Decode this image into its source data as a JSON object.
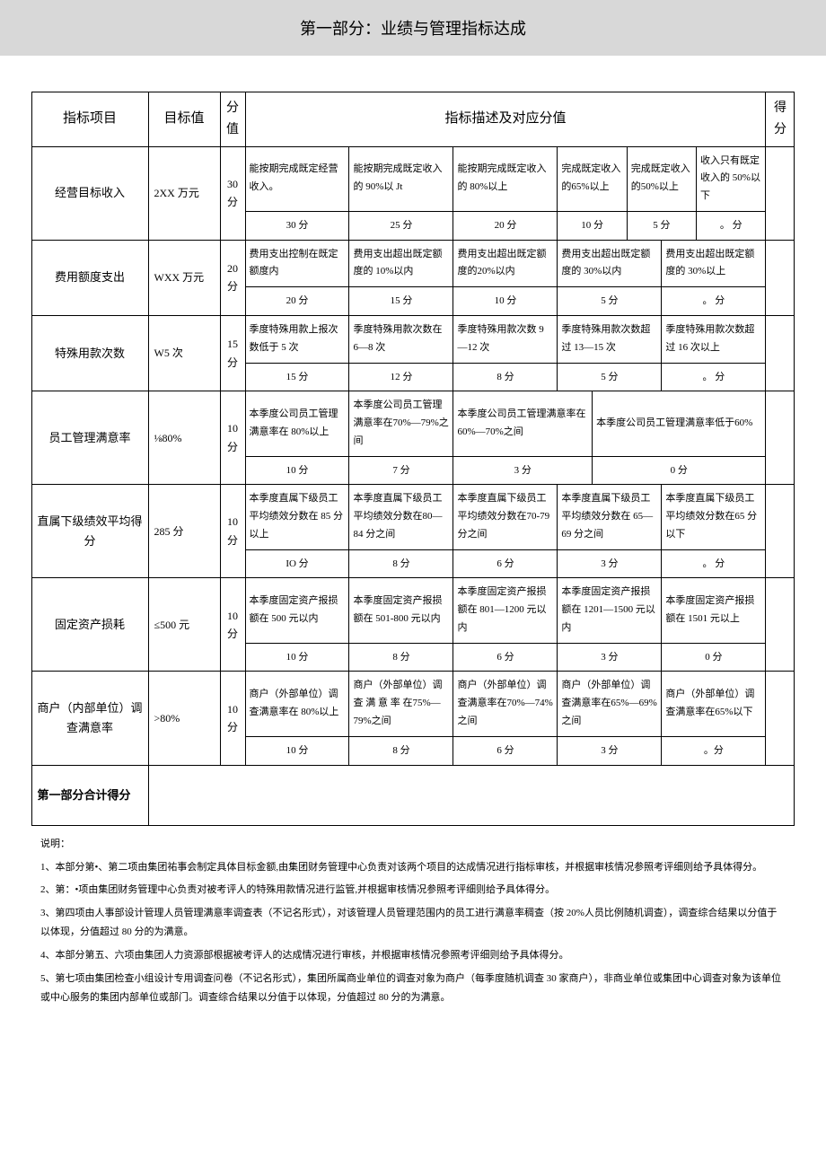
{
  "banner_title": "第一部分：业绩与管理指标达成",
  "headers": {
    "item": "指标项目",
    "target": "目标值",
    "points": "分值",
    "desc": "指标描述及对应分值",
    "score": "得分"
  },
  "rows": [
    {
      "label": "经营目标收入",
      "target": "2XX 万元",
      "points": "30 分",
      "cells": [
        {
          "colspan": 6,
          "text": "能按期完成既定经营收入。"
        },
        {
          "colspan": 6,
          "text": "能按期完成既定收入的 90%以 Jt"
        },
        {
          "colspan": 6,
          "text": "能按期完成既定收入的 80%以上"
        },
        {
          "colspan": 4,
          "text": "完成既定收入的65%以上"
        },
        {
          "colspan": 4,
          "text": "完成既定收入的50%以上"
        },
        {
          "colspan": 4,
          "text": "收入只有既定收入的 50%以下"
        }
      ],
      "scores": [
        {
          "colspan": 6,
          "text": "30 分"
        },
        {
          "colspan": 6,
          "text": "25 分"
        },
        {
          "colspan": 6,
          "text": "20 分"
        },
        {
          "colspan": 4,
          "text": "10 分"
        },
        {
          "colspan": 4,
          "text": "5 分"
        },
        {
          "colspan": 4,
          "text": "。 分"
        }
      ]
    },
    {
      "label": "费用额度支出",
      "target": "WXX 万元",
      "points": "20 分",
      "cells": [
        {
          "colspan": 6,
          "text": "费用支出控制在既定额度内"
        },
        {
          "colspan": 6,
          "text": "费用支出超出既定额度的 10%以内"
        },
        {
          "colspan": 6,
          "text": "费用支出超出既定额度的20%以内"
        },
        {
          "colspan": 6,
          "text": "费用支出超出既定额度的 30%以内"
        },
        {
          "colspan": 6,
          "text": "费用支出超出既定额度的 30%以上"
        }
      ],
      "scores": [
        {
          "colspan": 6,
          "text": "20 分"
        },
        {
          "colspan": 6,
          "text": "15 分"
        },
        {
          "colspan": 6,
          "text": "10 分"
        },
        {
          "colspan": 6,
          "text": "5 分"
        },
        {
          "colspan": 6,
          "text": "。 分"
        }
      ]
    },
    {
      "label": "特殊用款次数",
      "target": "W5 次",
      "points": "15 分",
      "cells": [
        {
          "colspan": 6,
          "text": "季度特殊用款上报次数低于 5 次"
        },
        {
          "colspan": 6,
          "text": "季度特殊用款次数在 6—8 次"
        },
        {
          "colspan": 6,
          "text": "季度特殊用款次数 9—12 次"
        },
        {
          "colspan": 6,
          "text": "季度特殊用款次数超过 13—15 次"
        },
        {
          "colspan": 6,
          "text": "季度特殊用款次数超过 16 次以上"
        }
      ],
      "scores": [
        {
          "colspan": 6,
          "text": "15 分"
        },
        {
          "colspan": 6,
          "text": "12 分"
        },
        {
          "colspan": 6,
          "text": "8 分"
        },
        {
          "colspan": 6,
          "text": "5 分"
        },
        {
          "colspan": 6,
          "text": "。 分"
        }
      ]
    },
    {
      "label": "员工管理满意率",
      "target": "⅛80%",
      "points": "10 分",
      "cells": [
        {
          "colspan": 6,
          "text": "本季度公司员工管理满意率在 80%以上"
        },
        {
          "colspan": 6,
          "text": "本季度公司员工管理满意率在70%—79%之间"
        },
        {
          "colspan": 8,
          "text": "本季度公司员工管理满意率在 60%—70%之间"
        },
        {
          "colspan": 10,
          "text": "本季度公司员工管理满意率低于60%"
        }
      ],
      "scores": [
        {
          "colspan": 6,
          "text": "10 分"
        },
        {
          "colspan": 6,
          "text": "7 分"
        },
        {
          "colspan": 8,
          "text": "3 分"
        },
        {
          "colspan": 10,
          "text": "0 分"
        }
      ]
    },
    {
      "label": "直属下级绩效平均得分",
      "target": "285 分",
      "points": "10 分",
      "cells": [
        {
          "colspan": 6,
          "text": "本季度直属下级员工平均绩效分数在 85 分以上"
        },
        {
          "colspan": 6,
          "text": "本季度直属下级员工平均绩效分数在80—84 分之间"
        },
        {
          "colspan": 6,
          "text": "本季度直属下级员工平均绩效分数在70-79 分之间"
        },
        {
          "colspan": 6,
          "text": "本季度直属下级员工平均绩效分数在 65—69 分之间"
        },
        {
          "colspan": 6,
          "text": "本季度直属下级员工平均绩效分数在65 分以下"
        }
      ],
      "scores": [
        {
          "colspan": 6,
          "text": "IO 分"
        },
        {
          "colspan": 6,
          "text": "8 分"
        },
        {
          "colspan": 6,
          "text": "6 分"
        },
        {
          "colspan": 6,
          "text": "3 分"
        },
        {
          "colspan": 6,
          "text": "。 分"
        }
      ]
    },
    {
      "label": "固定资产损耗",
      "target": "≤500 元",
      "points": "10 分",
      "cells": [
        {
          "colspan": 6,
          "text": "本季度固定资产报损额在 500 元以内"
        },
        {
          "colspan": 6,
          "text": "本季度固定资产报损额在 501-800 元以内"
        },
        {
          "colspan": 6,
          "text": "本季度固定资产报损额在 801—1200 元以内"
        },
        {
          "colspan": 6,
          "text": "本季度固定资产报损额在 1201—1500 元以内"
        },
        {
          "colspan": 6,
          "text": "本季度固定资产报损额在 1501 元以上"
        }
      ],
      "scores": [
        {
          "colspan": 6,
          "text": "10 分"
        },
        {
          "colspan": 6,
          "text": "8 分"
        },
        {
          "colspan": 6,
          "text": "6 分"
        },
        {
          "colspan": 6,
          "text": "3 分"
        },
        {
          "colspan": 6,
          "text": "0 分"
        }
      ]
    },
    {
      "label": "商户（内部单位）调查满意率",
      "target": ">80%",
      "points": "10 分",
      "cells": [
        {
          "colspan": 6,
          "text": "商户（外部单位）调查满意率在 80%以上"
        },
        {
          "colspan": 6,
          "text": "商户（外部单位）调 查 满 意 率 在75%—79%之间"
        },
        {
          "colspan": 6,
          "text": "商户（外部单位）调查满意率在70%—74%之间"
        },
        {
          "colspan": 6,
          "text": "商户（外部单位）调查满意率在65%—69%之间"
        },
        {
          "colspan": 6,
          "text": "商户（外部单位）调查满意率在65%以下"
        }
      ],
      "scores": [
        {
          "colspan": 6,
          "text": "10 分"
        },
        {
          "colspan": 6,
          "text": "8 分"
        },
        {
          "colspan": 6,
          "text": "6 分"
        },
        {
          "colspan": 6,
          "text": "3 分"
        },
        {
          "colspan": 6,
          "text": "。分"
        }
      ]
    }
  ],
  "total_label": "第一部分合计得分",
  "notes_title": "说明：",
  "notes": [
    "1、本部分第•、第二项由集团祐事会制定具体目标金额,由集团财务管理中心负责对该两个项目的达成情况进行指标审核，并根据审核情况参照考评细则给予具体得分。",
    "2、第：•项由集团财务管理中心负责对被考评人的特殊用款情况进行监管,并根据审核情况参照考评细则给予具体得分。",
    "3、第四项由人事部设计管理人员管理满意率调查表（不记名形式），对该管理人员管理范围内的员工进行满意率稠查（按 20%人员比例随机调查），调查综合结果以分值于以体现，分值超过 80 分的为满意。",
    "4、本部分第五、六项由集团人力资源部根据被考评人的达成情况进行审核，并根据审核情况参照考评细则给予具体得分。",
    "5、第七项由集团检查小组设计专用调查问卷（不记名形式），集团所属商业单位的调查对象为商户（每季度随机调查 30 家商户），非商业单位或集团中心调查对象为该单位或中心服务的集团内部单位或部门。调查综合结果以分值于以体现，分值超过 80 分的为满意。"
  ],
  "col_widths": {
    "label": 130,
    "target": 80,
    "points": 28,
    "desc_total": 580,
    "score": 32
  }
}
